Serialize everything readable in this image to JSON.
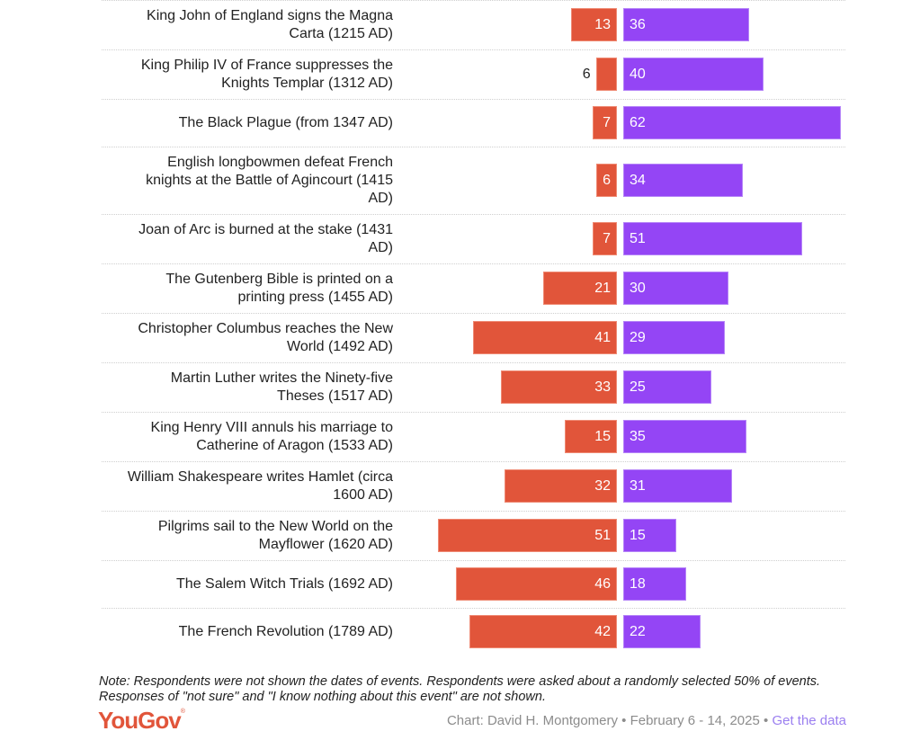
{
  "chart_data": {
    "type": "bar",
    "orientation": "horizontal-diverging",
    "categories": [
      "King John of England signs the Magna Carta (1215 AD)",
      "King Philip IV of France suppresses the Knights Templar (1312 AD)",
      "The Black Plague (from 1347 AD)",
      "English longbowmen defeat French knights at the Battle of Agincourt (1415 AD)",
      "Joan of Arc is burned at the stake (1431 AD)",
      "The Gutenberg Bible is printed on a printing press (1455 AD)",
      "Christopher Columbus reaches the New World (1492 AD)",
      "Martin Luther writes the Ninety-five Theses (1517 AD)",
      "King Henry VIII annuls his marriage to Catherine of Aragon (1533 AD)",
      "William Shakespeare writes Hamlet (circa 1600 AD)",
      "Pilgrims sail to the New World on the Mayflower (1620 AD)",
      "The Salem Witch Trials (1692 AD)",
      "The French Revolution (1789 AD)"
    ],
    "series": [
      {
        "name": "left (red)",
        "color": "#e1553a",
        "values": [
          13,
          6,
          7,
          6,
          7,
          21,
          41,
          33,
          15,
          32,
          51,
          46,
          42
        ]
      },
      {
        "name": "right (purple)",
        "color": "#9445f5",
        "values": [
          36,
          40,
          62,
          34,
          51,
          30,
          29,
          25,
          35,
          31,
          15,
          18,
          22
        ]
      }
    ],
    "outside_labels": {
      "left (red)": [
        1
      ]
    },
    "xlim": [
      0,
      62
    ],
    "grid": false,
    "legend": "none"
  },
  "rows": [
    {
      "lines": [
        "King John of England signs the Magna",
        "Carta (1215 AD)"
      ]
    },
    {
      "lines": [
        "King Philip IV of France suppresses the",
        "Knights Templar (1312 AD)"
      ]
    },
    {
      "lines": [
        "The Black Plague (from 1347 AD)"
      ]
    },
    {
      "lines": [
        "English longbowmen defeat French",
        "knights at the Battle of Agincourt (1415",
        "AD)"
      ]
    },
    {
      "lines": [
        "Joan of Arc is burned at the stake (1431",
        "AD)"
      ]
    },
    {
      "lines": [
        "The Gutenberg Bible is printed on a",
        "printing press (1455 AD)"
      ]
    },
    {
      "lines": [
        "Christopher Columbus reaches the New",
        "World (1492 AD)"
      ]
    },
    {
      "lines": [
        "Martin Luther writes the Ninety-five",
        "Theses (1517 AD)"
      ]
    },
    {
      "lines": [
        "King Henry VIII annuls his marriage to",
        "Catherine of Aragon (1533 AD)"
      ]
    },
    {
      "lines": [
        "William Shakespeare writes Hamlet (circa",
        "1600 AD)"
      ]
    },
    {
      "lines": [
        "Pilgrims sail to the New World on the",
        "Mayflower (1620 AD)"
      ]
    },
    {
      "lines": [
        "The Salem Witch Trials (1692 AD)"
      ]
    },
    {
      "lines": [
        "The French Revolution (1789 AD)"
      ]
    }
  ],
  "footer": {
    "note": "Note: Respondents were not shown the dates of events. Respondents were asked about a randomly selected 50% of events. Responses of \"not sure\" and \"I know nothing about this event\" are not shown.",
    "logo": "YouGov",
    "logo_mark": "®",
    "credit": "Chart: David H. Montgomery • February 6 - 14, 2025 • ",
    "link": "Get the data"
  }
}
